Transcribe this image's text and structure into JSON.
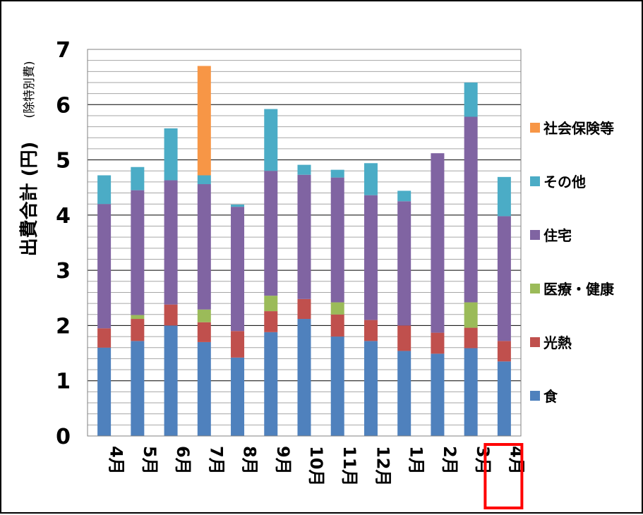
{
  "chart_data": {
    "type": "bar",
    "stacked": true,
    "ylabel": "出費合計 (円)",
    "ylabel_note": "(除特別費)",
    "ylim": [
      0,
      7
    ],
    "y_ticks": [
      "0",
      "1",
      "2",
      "3",
      "4",
      "5",
      "6",
      "7"
    ],
    "categories": [
      "4月",
      "5月",
      "6月",
      "7月",
      "8月",
      "9月",
      "10月",
      "11月",
      "12月",
      "1月",
      "2月",
      "3月",
      "4月"
    ],
    "highlighted_category_index": 12,
    "highlight_color": "#ff0000",
    "grid": true,
    "legend_position": "right",
    "series": [
      {
        "name": "食",
        "color": "#4f81bd",
        "values": [
          1.6,
          1.72,
          2.0,
          1.7,
          1.42,
          1.88,
          2.12,
          1.8,
          1.72,
          1.54,
          1.49,
          1.59,
          1.35
        ]
      },
      {
        "name": "光熱",
        "color": "#c0504d",
        "values": [
          0.35,
          0.4,
          0.38,
          0.36,
          0.48,
          0.38,
          0.36,
          0.4,
          0.38,
          0.46,
          0.38,
          0.37,
          0.37
        ]
      },
      {
        "name": "医療・健康",
        "color": "#9bbb59",
        "values": [
          0,
          0.07,
          0,
          0.23,
          0,
          0.28,
          0,
          0.22,
          0,
          0,
          0,
          0.46,
          0
        ]
      },
      {
        "name": "住宅",
        "color": "#8064a2",
        "values": [
          2.25,
          2.26,
          2.25,
          2.27,
          2.25,
          2.26,
          2.25,
          2.26,
          2.26,
          2.25,
          3.25,
          3.36,
          2.26
        ]
      },
      {
        "name": "その他",
        "color": "#4bacc6",
        "values": [
          0.52,
          0.42,
          0.94,
          0.16,
          0.04,
          1.12,
          0.18,
          0.14,
          0.58,
          0.19,
          0,
          0.62,
          0.71
        ]
      },
      {
        "name": "社会保険等",
        "color": "#f79646",
        "values": [
          0,
          0,
          0,
          1.98,
          0,
          0,
          0,
          0,
          0,
          0,
          0,
          0,
          0
        ]
      }
    ],
    "legend_order": [
      "社会保険等",
      "その他",
      "住宅",
      "医療・健康",
      "光熱",
      "食"
    ]
  }
}
